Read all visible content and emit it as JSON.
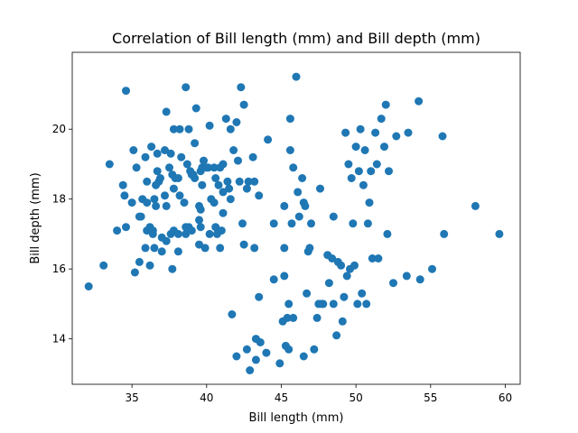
{
  "chart_data": {
    "type": "scatter",
    "title": "Correlation of Bill length (mm) and Bill depth (mm)",
    "xlabel": "Bill length (mm)",
    "ylabel": "Bill depth (mm)",
    "xlim": [
      31,
      61
    ],
    "ylim": [
      12.7,
      22.2
    ],
    "xticks": [
      35,
      40,
      45,
      50,
      55,
      60
    ],
    "yticks": [
      14,
      16,
      18,
      20
    ],
    "xtick_labels": [
      "35",
      "40",
      "45",
      "50",
      "55",
      "60"
    ],
    "ytick_labels": [
      "14",
      "16",
      "18",
      "20"
    ],
    "grid": false,
    "marker_color": "#1f77b4",
    "points": [
      [
        32.1,
        15.5
      ],
      [
        33.1,
        16.1
      ],
      [
        33.5,
        19.0
      ],
      [
        34.0,
        17.1
      ],
      [
        34.4,
        18.4
      ],
      [
        34.5,
        18.1
      ],
      [
        34.6,
        21.1
      ],
      [
        34.6,
        17.2
      ],
      [
        35.0,
        17.9
      ],
      [
        35.1,
        19.4
      ],
      [
        35.2,
        15.9
      ],
      [
        35.3,
        18.9
      ],
      [
        35.5,
        17.5
      ],
      [
        35.5,
        16.2
      ],
      [
        35.6,
        17.5
      ],
      [
        35.7,
        18.0
      ],
      [
        35.9,
        19.2
      ],
      [
        35.9,
        16.6
      ],
      [
        36.0,
        17.9
      ],
      [
        36.0,
        18.5
      ],
      [
        36.0,
        17.1
      ],
      [
        36.2,
        17.2
      ],
      [
        36.2,
        16.1
      ],
      [
        36.3,
        19.5
      ],
      [
        36.4,
        17.0
      ],
      [
        36.4,
        17.1
      ],
      [
        36.5,
        18.0
      ],
      [
        36.5,
        16.6
      ],
      [
        36.6,
        17.8
      ],
      [
        36.6,
        18.4
      ],
      [
        36.7,
        19.3
      ],
      [
        36.7,
        18.8
      ],
      [
        36.8,
        18.5
      ],
      [
        36.9,
        18.6
      ],
      [
        37.0,
        16.9
      ],
      [
        37.0,
        16.5
      ],
      [
        37.2,
        18.1
      ],
      [
        37.2,
        19.4
      ],
      [
        37.3,
        20.5
      ],
      [
        37.3,
        17.8
      ],
      [
        37.3,
        16.8
      ],
      [
        37.5,
        18.9
      ],
      [
        37.6,
        19.3
      ],
      [
        37.6,
        17.0
      ],
      [
        37.7,
        18.7
      ],
      [
        37.7,
        16.0
      ],
      [
        37.8,
        18.3
      ],
      [
        37.8,
        17.1
      ],
      [
        37.8,
        20.0
      ],
      [
        37.9,
        18.6
      ],
      [
        38.1,
        18.6
      ],
      [
        38.1,
        17.0
      ],
      [
        38.1,
        16.5
      ],
      [
        38.2,
        18.1
      ],
      [
        38.2,
        20.0
      ],
      [
        38.3,
        19.2
      ],
      [
        38.5,
        17.9
      ],
      [
        38.6,
        21.2
      ],
      [
        38.6,
        17.2
      ],
      [
        38.6,
        17.0
      ],
      [
        38.7,
        19.0
      ],
      [
        38.8,
        17.2
      ],
      [
        38.8,
        20.0
      ],
      [
        38.9,
        18.8
      ],
      [
        39.0,
        17.1
      ],
      [
        39.0,
        18.7
      ],
      [
        39.1,
        18.7
      ],
      [
        39.2,
        19.6
      ],
      [
        39.2,
        18.6
      ],
      [
        39.3,
        20.6
      ],
      [
        39.5,
        17.4
      ],
      [
        39.5,
        16.7
      ],
      [
        39.5,
        17.8
      ],
      [
        39.6,
        17.7
      ],
      [
        39.6,
        18.8
      ],
      [
        39.6,
        17.2
      ],
      [
        39.7,
        18.4
      ],
      [
        39.7,
        18.9
      ],
      [
        39.8,
        19.1
      ],
      [
        39.9,
        16.6
      ],
      [
        40.0,
        18.9
      ],
      [
        40.1,
        18.9
      ],
      [
        40.2,
        17.0
      ],
      [
        40.2,
        20.1
      ],
      [
        40.3,
        18.0
      ],
      [
        40.5,
        18.9
      ],
      [
        40.5,
        17.9
      ],
      [
        40.6,
        18.6
      ],
      [
        40.6,
        17.2
      ],
      [
        40.7,
        17.0
      ],
      [
        40.8,
        18.4
      ],
      [
        40.9,
        16.6
      ],
      [
        40.9,
        18.9
      ],
      [
        41.0,
        17.1
      ],
      [
        41.1,
        18.2
      ],
      [
        41.1,
        19.0
      ],
      [
        41.1,
        17.6
      ],
      [
        41.3,
        20.3
      ],
      [
        41.4,
        18.5
      ],
      [
        41.5,
        18.3
      ],
      [
        41.6,
        18.0
      ],
      [
        41.6,
        20.0
      ],
      [
        41.7,
        14.7
      ],
      [
        41.8,
        19.4
      ],
      [
        42.0,
        20.2
      ],
      [
        42.0,
        13.5
      ],
      [
        42.1,
        19.1
      ],
      [
        42.2,
        18.5
      ],
      [
        42.3,
        21.2
      ],
      [
        42.4,
        17.3
      ],
      [
        42.5,
        20.7
      ],
      [
        42.5,
        16.7
      ],
      [
        42.7,
        18.3
      ],
      [
        42.7,
        13.7
      ],
      [
        42.8,
        18.5
      ],
      [
        42.9,
        13.1
      ],
      [
        43.1,
        19.2
      ],
      [
        43.2,
        16.6
      ],
      [
        43.2,
        18.5
      ],
      [
        43.3,
        13.4
      ],
      [
        43.3,
        14.0
      ],
      [
        43.5,
        18.1
      ],
      [
        43.5,
        15.2
      ],
      [
        43.6,
        13.9
      ],
      [
        44.0,
        13.6
      ],
      [
        44.1,
        19.7
      ],
      [
        44.5,
        17.3
      ],
      [
        44.5,
        15.7
      ],
      [
        44.9,
        13.3
      ],
      [
        45.1,
        14.5
      ],
      [
        45.2,
        17.8
      ],
      [
        45.2,
        16.6
      ],
      [
        45.2,
        15.8
      ],
      [
        45.3,
        13.8
      ],
      [
        45.4,
        14.6
      ],
      [
        45.5,
        13.7
      ],
      [
        45.5,
        15.0
      ],
      [
        45.6,
        19.4
      ],
      [
        45.6,
        20.3
      ],
      [
        45.7,
        17.3
      ],
      [
        45.8,
        18.9
      ],
      [
        45.8,
        14.6
      ],
      [
        46.0,
        21.5
      ],
      [
        46.1,
        18.2
      ],
      [
        46.2,
        17.5
      ],
      [
        46.4,
        18.6
      ],
      [
        46.5,
        17.9
      ],
      [
        46.5,
        13.5
      ],
      [
        46.6,
        17.8
      ],
      [
        46.7,
        15.3
      ],
      [
        46.8,
        16.5
      ],
      [
        46.9,
        16.6
      ],
      [
        47.0,
        17.3
      ],
      [
        47.2,
        13.7
      ],
      [
        47.4,
        14.6
      ],
      [
        47.5,
        15.0
      ],
      [
        47.6,
        18.3
      ],
      [
        47.7,
        15.0
      ],
      [
        47.8,
        15.0
      ],
      [
        48.1,
        16.4
      ],
      [
        48.2,
        15.6
      ],
      [
        48.4,
        16.3
      ],
      [
        48.5,
        17.5
      ],
      [
        48.5,
        15.0
      ],
      [
        48.7,
        14.1
      ],
      [
        48.8,
        16.2
      ],
      [
        49.0,
        16.1
      ],
      [
        49.1,
        14.5
      ],
      [
        49.2,
        15.2
      ],
      [
        49.3,
        19.9
      ],
      [
        49.4,
        15.8
      ],
      [
        49.5,
        19.0
      ],
      [
        49.6,
        16.0
      ],
      [
        49.7,
        18.6
      ],
      [
        49.8,
        17.3
      ],
      [
        49.9,
        16.1
      ],
      [
        50.0,
        19.5
      ],
      [
        50.1,
        15.0
      ],
      [
        50.2,
        18.8
      ],
      [
        50.3,
        20.0
      ],
      [
        50.4,
        15.3
      ],
      [
        50.5,
        18.4
      ],
      [
        50.6,
        19.4
      ],
      [
        50.7,
        15.0
      ],
      [
        50.8,
        17.3
      ],
      [
        50.9,
        17.9
      ],
      [
        51.0,
        18.8
      ],
      [
        51.1,
        16.3
      ],
      [
        51.3,
        19.9
      ],
      [
        51.4,
        19.0
      ],
      [
        51.5,
        16.3
      ],
      [
        51.7,
        20.3
      ],
      [
        51.9,
        19.5
      ],
      [
        52.0,
        20.7
      ],
      [
        52.1,
        17.0
      ],
      [
        52.2,
        18.8
      ],
      [
        52.5,
        15.6
      ],
      [
        52.7,
        19.8
      ],
      [
        53.4,
        15.8
      ],
      [
        53.5,
        19.9
      ],
      [
        54.2,
        20.8
      ],
      [
        54.3,
        15.7
      ],
      [
        55.1,
        16.0
      ],
      [
        55.8,
        19.8
      ],
      [
        55.9,
        17.0
      ],
      [
        58.0,
        17.8
      ],
      [
        59.6,
        17.0
      ]
    ]
  }
}
